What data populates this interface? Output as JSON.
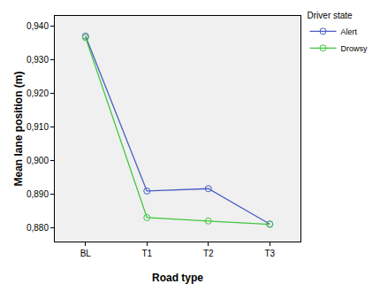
{
  "chart_data": {
    "type": "line",
    "x_label": "Road type",
    "y_label": "Mean lane position (m)",
    "legend_title": "Driver state",
    "categories": [
      "BL",
      "T1",
      "T2",
      "T3"
    ],
    "series": [
      {
        "name": "Alert",
        "color": "#4a5bc4",
        "values": [
          0.937,
          0.891,
          0.8917,
          0.8812
        ]
      },
      {
        "name": "Drowsy",
        "color": "#3dc83d",
        "values": [
          0.9366,
          0.8831,
          0.8821,
          0.8811
        ]
      }
    ],
    "ylim": [
      0.876,
      0.943
    ],
    "yticks": [
      {
        "value": 0.88,
        "label": "0,880"
      },
      {
        "value": 0.89,
        "label": "0,890"
      },
      {
        "value": 0.9,
        "label": "0,900"
      },
      {
        "value": 0.91,
        "label": "0,910"
      },
      {
        "value": 0.92,
        "label": "0,920"
      },
      {
        "value": 0.93,
        "label": "0,930"
      },
      {
        "value": 0.94,
        "label": "0,940"
      }
    ],
    "grid": false,
    "legend": "top right",
    "marker": "circle-open",
    "line_style": "solid"
  }
}
